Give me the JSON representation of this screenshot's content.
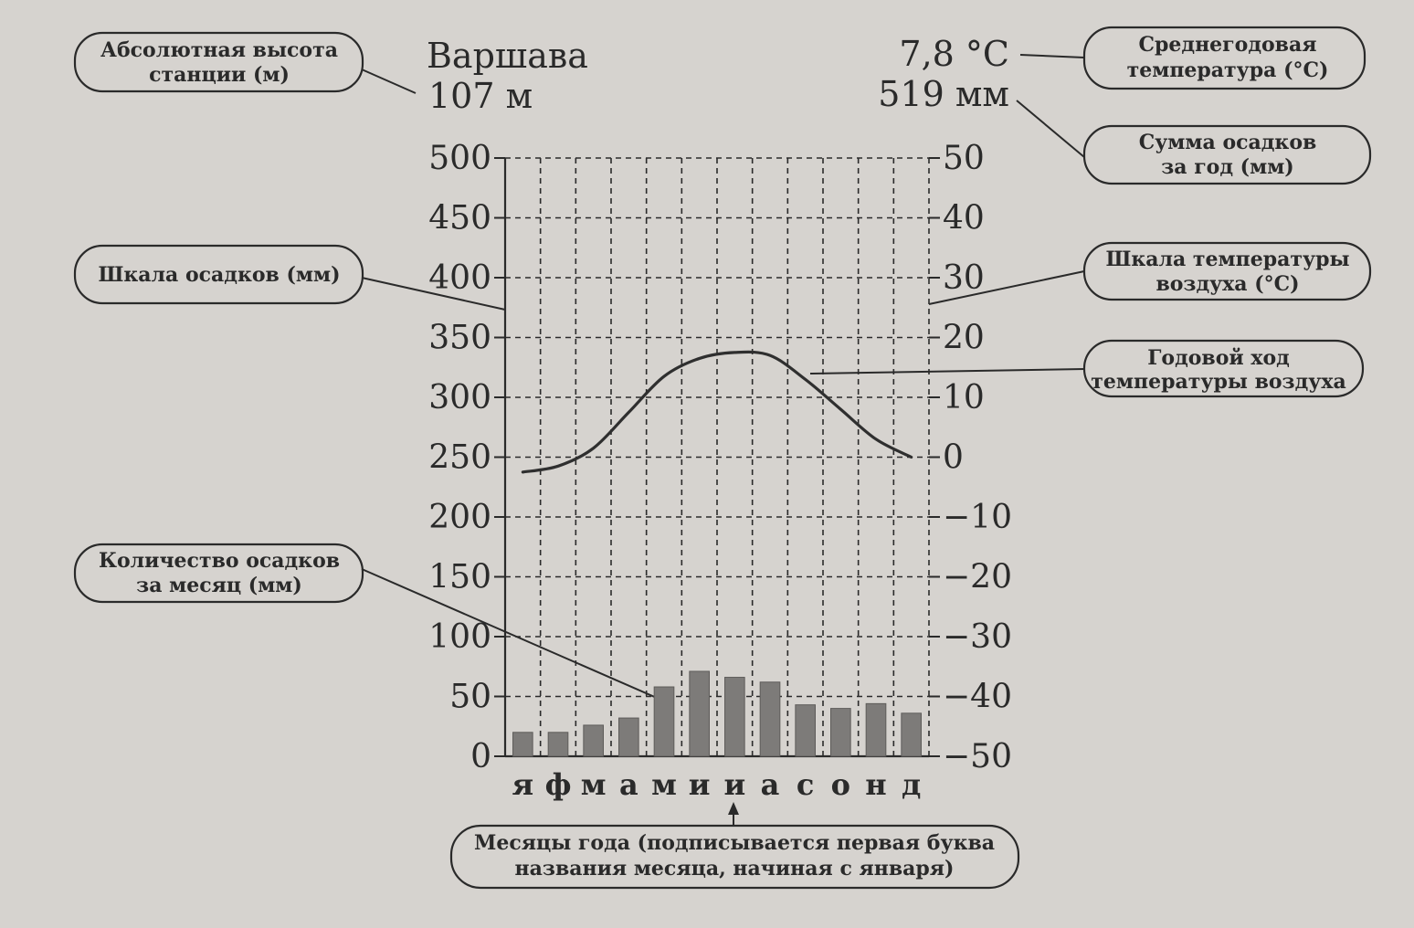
{
  "header": {
    "station": "Варшава",
    "altitude": "107 м",
    "mean_temp": "7,8 °C",
    "annual_precip": "519 мм"
  },
  "callouts": {
    "altitude_1": "Абсолютная высота",
    "altitude_2": "станции (м)",
    "mean_temp_1": "Среднегодовая",
    "mean_temp_2": "температура (°С)",
    "annual_precip_1": "Сумма осадков",
    "annual_precip_2": "за год (мм)",
    "precip_scale": "Шкала осадков (мм)",
    "temp_scale_1": "Шкала температуры",
    "temp_scale_2": "воздуха (°С)",
    "temp_course_1": "Годовой ход",
    "temp_course_2": "температуры воздуха",
    "monthly_precip_1": "Количество осадков",
    "monthly_precip_2": "за месяц (мм)",
    "months_1": "Месяцы года (подписывается первая буква",
    "months_2": "названия месяца, начиная с января)"
  },
  "chart_data": {
    "type": "bar+line",
    "categories": [
      "я",
      "ф",
      "м",
      "а",
      "м",
      "и",
      "и",
      "а",
      "с",
      "о",
      "н",
      "д"
    ],
    "series": [
      {
        "axis": "left",
        "values": [
          20,
          20,
          26,
          32,
          58,
          71,
          66,
          62,
          43,
          40,
          44,
          36
        ]
      },
      {
        "axis": "right",
        "values": [
          -2.5,
          -1.5,
          1.5,
          7.5,
          13.5,
          16.5,
          17.5,
          17,
          13,
          8,
          3,
          0
        ]
      }
    ],
    "left_axis": {
      "ylim": [
        0,
        500
      ],
      "ticks": [
        "0",
        "50",
        "100",
        "150",
        "200",
        "250",
        "300",
        "350",
        "400",
        "450",
        "500"
      ]
    },
    "right_axis": {
      "ylim": [
        -50,
        50
      ],
      "ticks": [
        "−50",
        "−40",
        "−30",
        "−20",
        "−10",
        "0",
        "10",
        "20",
        "30",
        "40",
        "50"
      ]
    },
    "grid": true
  }
}
